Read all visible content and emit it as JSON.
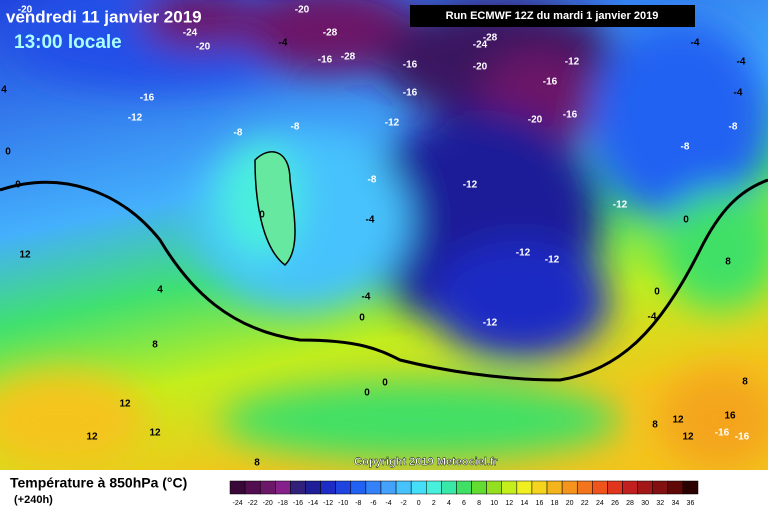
{
  "header": {
    "date": "vendredi 11 janvier 2019",
    "time": "13:00 locale",
    "run": "Run ECMWF 12Z du mardi 1 janvier 2019"
  },
  "copyright": "Copyright 2019 Meteociel.fr",
  "legend": {
    "title": "Température à 850hPa (°C)",
    "lead": "(+240h)"
  },
  "colorbar": {
    "values": [
      -24,
      -22,
      -20,
      -18,
      -16,
      -14,
      -12,
      -10,
      -8,
      -6,
      -4,
      -2,
      0,
      2,
      4,
      6,
      8,
      10,
      12,
      14,
      16,
      18,
      20,
      22,
      24,
      26,
      28,
      30,
      32,
      34,
      36
    ],
    "colors": [
      "#3a0838",
      "#520e50",
      "#6c1868",
      "#86208a",
      "#30207a",
      "#1e1e98",
      "#1c2cc4",
      "#2044e0",
      "#2262f2",
      "#3482fa",
      "#44a2fc",
      "#46c2fc",
      "#44def8",
      "#48f0dc",
      "#38e8a8",
      "#40e066",
      "#62dc30",
      "#94e020",
      "#c4ee1c",
      "#f0f020",
      "#f4d41c",
      "#f4b41c",
      "#f4941c",
      "#f2741c",
      "#ee541c",
      "#e0361e",
      "#c22020",
      "#a21818",
      "#821010",
      "#600808",
      "#2a0000"
    ]
  },
  "contour_labels": [
    -20,
    -24,
    -20,
    -20,
    -4,
    -28,
    -16,
    -28,
    -16,
    -16,
    -20,
    -24,
    -28,
    -16,
    -12,
    -20,
    -16,
    -12,
    -4,
    -4,
    -4,
    -8,
    -8,
    -16,
    -12,
    -8,
    -8,
    -8,
    -12,
    -12,
    0,
    -4,
    -12,
    -12,
    0,
    0,
    0,
    0,
    -4,
    0,
    -4,
    -12,
    8,
    12,
    4,
    8,
    12,
    12,
    12,
    0,
    0,
    8,
    16,
    12,
    8,
    12,
    -16,
    -16,
    8,
    4
  ]
}
